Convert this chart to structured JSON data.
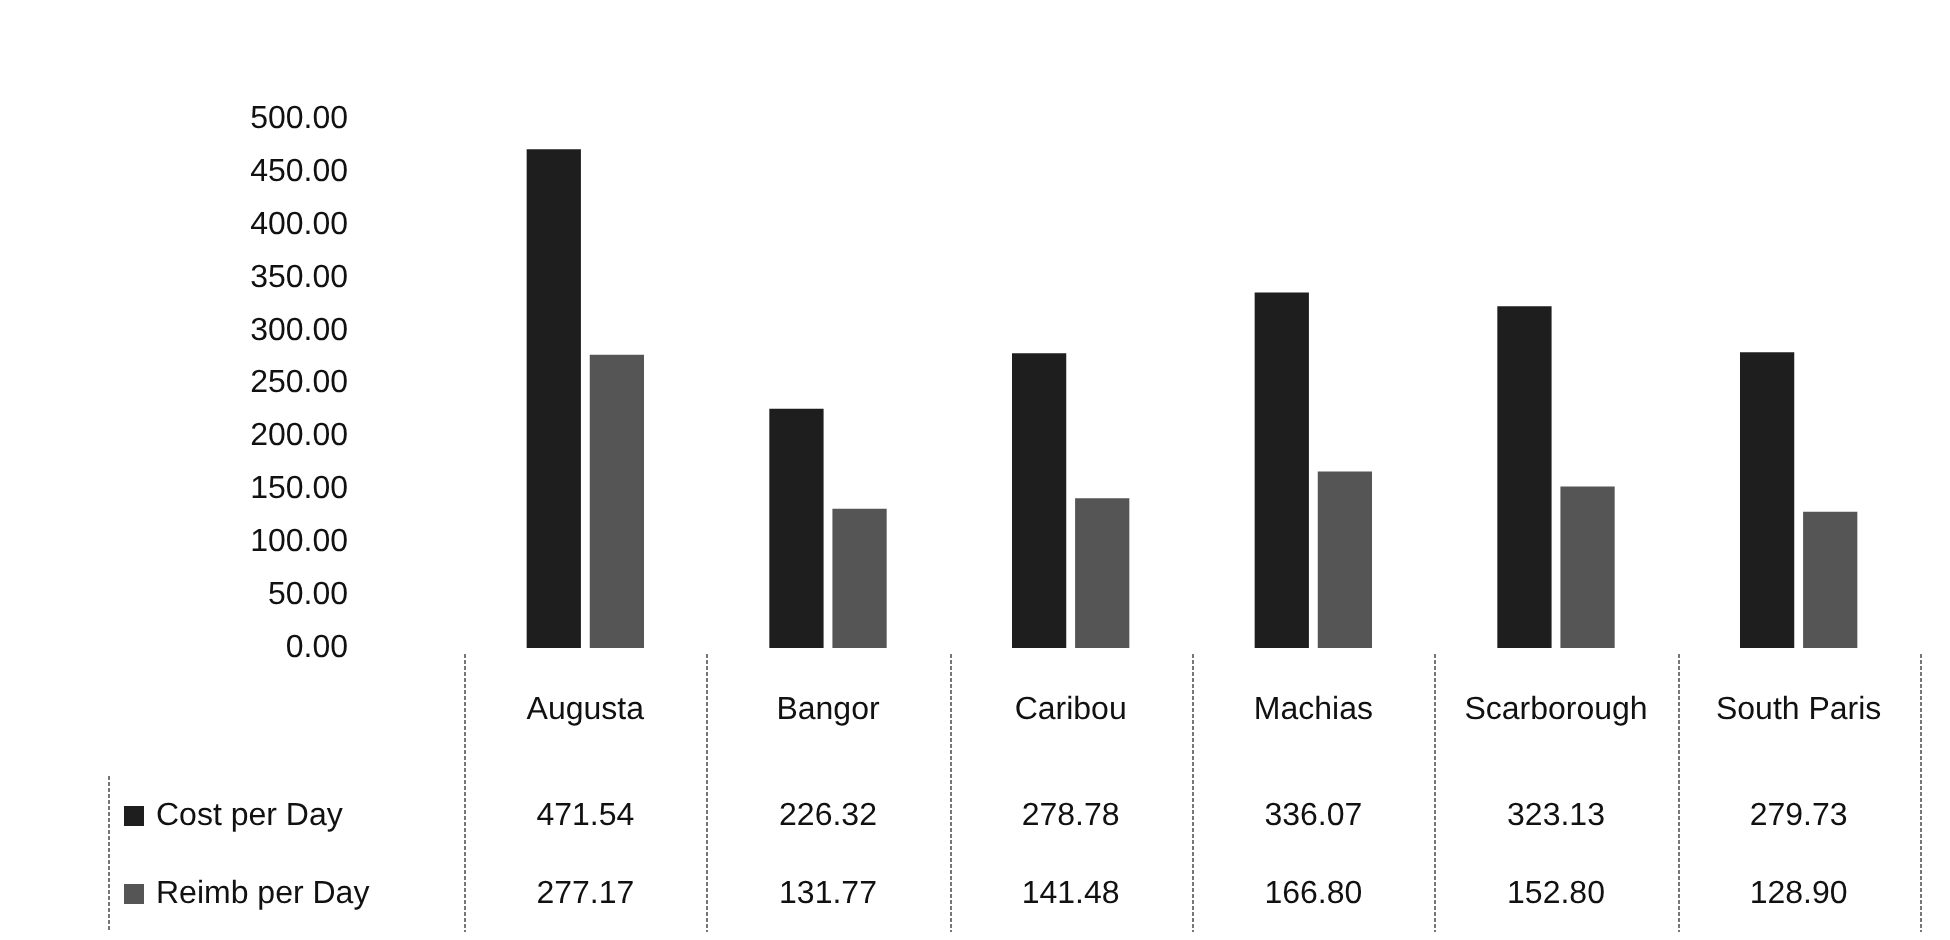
{
  "chart_data": {
    "type": "bar",
    "categories": [
      "Augusta",
      "Bangor",
      "Caribou",
      "Machias",
      "Scarborough",
      "South Paris"
    ],
    "series": [
      {
        "name": "Cost per Day",
        "color": "#1e1e1e",
        "values": [
          471.54,
          226.32,
          278.78,
          336.07,
          323.13,
          279.73
        ],
        "value_labels": [
          "471.54",
          "226.32",
          "278.78",
          "336.07",
          "323.13",
          "279.73"
        ]
      },
      {
        "name": "Reimb per Day",
        "color": "#555555",
        "values": [
          277.17,
          131.77,
          141.48,
          166.8,
          152.8,
          128.9
        ],
        "value_labels": [
          "277.17",
          "131.77",
          "141.48",
          "166.80",
          "152.80",
          "128.90"
        ]
      }
    ],
    "ylim": [
      0,
      500
    ],
    "yticks": [
      {
        "value": 0,
        "label": "0.00"
      },
      {
        "value": 50,
        "label": "50.00"
      },
      {
        "value": 100,
        "label": "100.00"
      },
      {
        "value": 150,
        "label": "150.00"
      },
      {
        "value": 200,
        "label": "200.00"
      },
      {
        "value": 250,
        "label": "250.00"
      },
      {
        "value": 300,
        "label": "300.00"
      },
      {
        "value": 350,
        "label": "350.00"
      },
      {
        "value": 400,
        "label": "400.00"
      },
      {
        "value": 450,
        "label": "450.00"
      },
      {
        "value": 500,
        "label": "500.00"
      }
    ],
    "grid": false,
    "legend": "bottom left"
  }
}
